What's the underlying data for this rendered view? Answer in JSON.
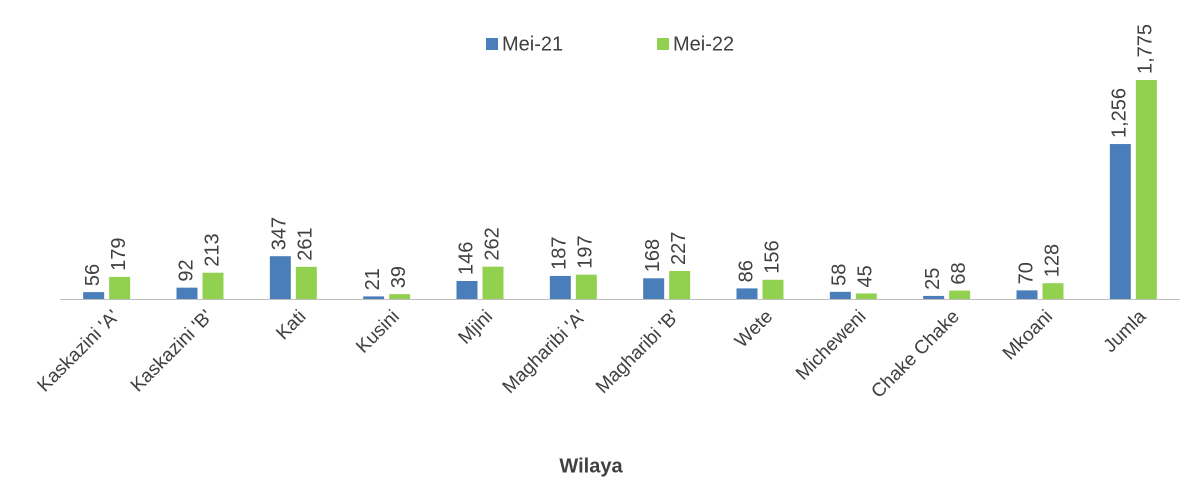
{
  "chart_data": {
    "type": "bar",
    "x_label": "Wilaya",
    "legend": "top",
    "categories": [
      "Kaskazini 'A'",
      "Kaskazini 'B'",
      "Kati",
      "Kusini",
      "Mjini",
      "Magharibi 'A'",
      "Magharibi 'B'",
      "Wete",
      "Micheweni",
      "Chake Chake",
      "Mkoani",
      "Jumla"
    ],
    "series": [
      {
        "name": "Mei-21",
        "color": "#4a7ebb",
        "values": [
          56,
          92,
          347,
          21,
          146,
          187,
          168,
          86,
          58,
          25,
          70,
          1256
        ],
        "value_labels": [
          "56",
          "92",
          "347",
          "21",
          "146",
          "187",
          "168",
          "86",
          "58",
          "25",
          "70",
          "1,256"
        ]
      },
      {
        "name": "Mei-22",
        "color": "#92d050",
        "values": [
          179,
          213,
          261,
          39,
          262,
          197,
          227,
          156,
          45,
          68,
          128,
          1775
        ],
        "value_labels": [
          "179",
          "213",
          "261",
          "39",
          "262",
          "197",
          "227",
          "156",
          "45",
          "68",
          "128",
          "1,775"
        ]
      }
    ]
  }
}
